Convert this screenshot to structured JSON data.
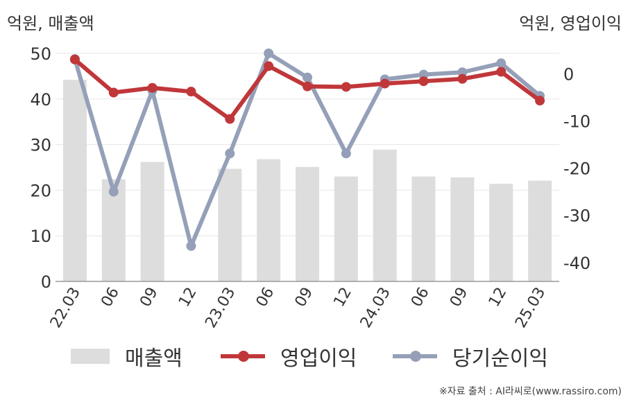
{
  "labels": {
    "left_axis_unit": "억원, 매출액",
    "right_axis_unit": "억원, 영업이익",
    "source": "※자료 출처 : AI라씨로(www.rassiro.com)"
  },
  "colors": {
    "revenue": "#dddddd",
    "operating_profit": "#c0373a",
    "net_income": "#95a0b8",
    "axis": "#999999",
    "grid": "#e6e6e6",
    "text": "#333333"
  },
  "chart_data": {
    "type": "bar",
    "categories": [
      "22.03",
      "06",
      "09",
      "12",
      "23.03",
      "06",
      "09",
      "12",
      "24.03",
      "06",
      "09",
      "12",
      "25.03"
    ],
    "left_ylim": [
      0,
      50
    ],
    "left_ticks": [
      0,
      10,
      20,
      30,
      40,
      50
    ],
    "right_ylim": [
      -44,
      4.3
    ],
    "right_ticks": [
      0,
      -10,
      -20,
      -30,
      -40
    ],
    "grid": true,
    "legend_position": "bottom",
    "series": [
      {
        "name": "매출액",
        "type": "bar",
        "axis": "left",
        "values": [
          44.2,
          22.4,
          26.2,
          0,
          24.7,
          26.8,
          25.1,
          23.0,
          28.9,
          23.0,
          22.8,
          21.4,
          22.1
        ]
      },
      {
        "name": "영업이익",
        "type": "line",
        "axis": "right",
        "values": [
          3.0,
          -4.0,
          -3.0,
          -3.8,
          -9.6,
          1.6,
          -2.7,
          -2.8,
          -2.1,
          -1.6,
          -1.1,
          0.4,
          -5.7
        ]
      },
      {
        "name": "당기순이익",
        "type": "line",
        "axis": "right",
        "values": [
          3.1,
          -25.0,
          -3.6,
          -36.5,
          -16.9,
          4.3,
          -0.8,
          -16.9,
          -1.2,
          -0.2,
          0.3,
          2.2,
          -4.7
        ]
      }
    ]
  }
}
